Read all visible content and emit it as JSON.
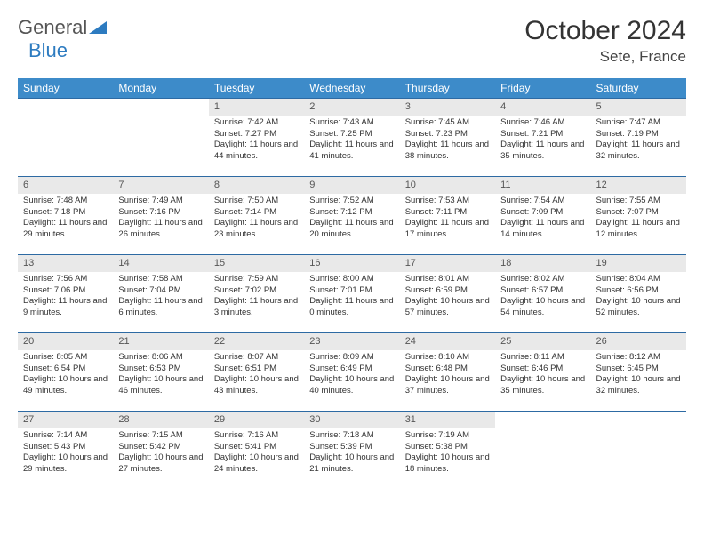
{
  "brand": {
    "part1": "General",
    "part2": "Blue"
  },
  "title": "October 2024",
  "location": "Sete, France",
  "colors": {
    "header_bg": "#3d8bc9",
    "header_text": "#ffffff",
    "daynum_bg": "#e9e9e9",
    "row_border": "#2d6aa3",
    "logo_blue": "#2d7bc0"
  },
  "weekdays": [
    "Sunday",
    "Monday",
    "Tuesday",
    "Wednesday",
    "Thursday",
    "Friday",
    "Saturday"
  ],
  "leading_blanks": 2,
  "days": [
    {
      "n": "1",
      "sunrise": "7:42 AM",
      "sunset": "7:27 PM",
      "daylight": "11 hours and 44 minutes."
    },
    {
      "n": "2",
      "sunrise": "7:43 AM",
      "sunset": "7:25 PM",
      "daylight": "11 hours and 41 minutes."
    },
    {
      "n": "3",
      "sunrise": "7:45 AM",
      "sunset": "7:23 PM",
      "daylight": "11 hours and 38 minutes."
    },
    {
      "n": "4",
      "sunrise": "7:46 AM",
      "sunset": "7:21 PM",
      "daylight": "11 hours and 35 minutes."
    },
    {
      "n": "5",
      "sunrise": "7:47 AM",
      "sunset": "7:19 PM",
      "daylight": "11 hours and 32 minutes."
    },
    {
      "n": "6",
      "sunrise": "7:48 AM",
      "sunset": "7:18 PM",
      "daylight": "11 hours and 29 minutes."
    },
    {
      "n": "7",
      "sunrise": "7:49 AM",
      "sunset": "7:16 PM",
      "daylight": "11 hours and 26 minutes."
    },
    {
      "n": "8",
      "sunrise": "7:50 AM",
      "sunset": "7:14 PM",
      "daylight": "11 hours and 23 minutes."
    },
    {
      "n": "9",
      "sunrise": "7:52 AM",
      "sunset": "7:12 PM",
      "daylight": "11 hours and 20 minutes."
    },
    {
      "n": "10",
      "sunrise": "7:53 AM",
      "sunset": "7:11 PM",
      "daylight": "11 hours and 17 minutes."
    },
    {
      "n": "11",
      "sunrise": "7:54 AM",
      "sunset": "7:09 PM",
      "daylight": "11 hours and 14 minutes."
    },
    {
      "n": "12",
      "sunrise": "7:55 AM",
      "sunset": "7:07 PM",
      "daylight": "11 hours and 12 minutes."
    },
    {
      "n": "13",
      "sunrise": "7:56 AM",
      "sunset": "7:06 PM",
      "daylight": "11 hours and 9 minutes."
    },
    {
      "n": "14",
      "sunrise": "7:58 AM",
      "sunset": "7:04 PM",
      "daylight": "11 hours and 6 minutes."
    },
    {
      "n": "15",
      "sunrise": "7:59 AM",
      "sunset": "7:02 PM",
      "daylight": "11 hours and 3 minutes."
    },
    {
      "n": "16",
      "sunrise": "8:00 AM",
      "sunset": "7:01 PM",
      "daylight": "11 hours and 0 minutes."
    },
    {
      "n": "17",
      "sunrise": "8:01 AM",
      "sunset": "6:59 PM",
      "daylight": "10 hours and 57 minutes."
    },
    {
      "n": "18",
      "sunrise": "8:02 AM",
      "sunset": "6:57 PM",
      "daylight": "10 hours and 54 minutes."
    },
    {
      "n": "19",
      "sunrise": "8:04 AM",
      "sunset": "6:56 PM",
      "daylight": "10 hours and 52 minutes."
    },
    {
      "n": "20",
      "sunrise": "8:05 AM",
      "sunset": "6:54 PM",
      "daylight": "10 hours and 49 minutes."
    },
    {
      "n": "21",
      "sunrise": "8:06 AM",
      "sunset": "6:53 PM",
      "daylight": "10 hours and 46 minutes."
    },
    {
      "n": "22",
      "sunrise": "8:07 AM",
      "sunset": "6:51 PM",
      "daylight": "10 hours and 43 minutes."
    },
    {
      "n": "23",
      "sunrise": "8:09 AM",
      "sunset": "6:49 PM",
      "daylight": "10 hours and 40 minutes."
    },
    {
      "n": "24",
      "sunrise": "8:10 AM",
      "sunset": "6:48 PM",
      "daylight": "10 hours and 37 minutes."
    },
    {
      "n": "25",
      "sunrise": "8:11 AM",
      "sunset": "6:46 PM",
      "daylight": "10 hours and 35 minutes."
    },
    {
      "n": "26",
      "sunrise": "8:12 AM",
      "sunset": "6:45 PM",
      "daylight": "10 hours and 32 minutes."
    },
    {
      "n": "27",
      "sunrise": "7:14 AM",
      "sunset": "5:43 PM",
      "daylight": "10 hours and 29 minutes."
    },
    {
      "n": "28",
      "sunrise": "7:15 AM",
      "sunset": "5:42 PM",
      "daylight": "10 hours and 27 minutes."
    },
    {
      "n": "29",
      "sunrise": "7:16 AM",
      "sunset": "5:41 PM",
      "daylight": "10 hours and 24 minutes."
    },
    {
      "n": "30",
      "sunrise": "7:18 AM",
      "sunset": "5:39 PM",
      "daylight": "10 hours and 21 minutes."
    },
    {
      "n": "31",
      "sunrise": "7:19 AM",
      "sunset": "5:38 PM",
      "daylight": "10 hours and 18 minutes."
    }
  ],
  "labels": {
    "sunrise": "Sunrise:",
    "sunset": "Sunset:",
    "daylight": "Daylight:"
  }
}
